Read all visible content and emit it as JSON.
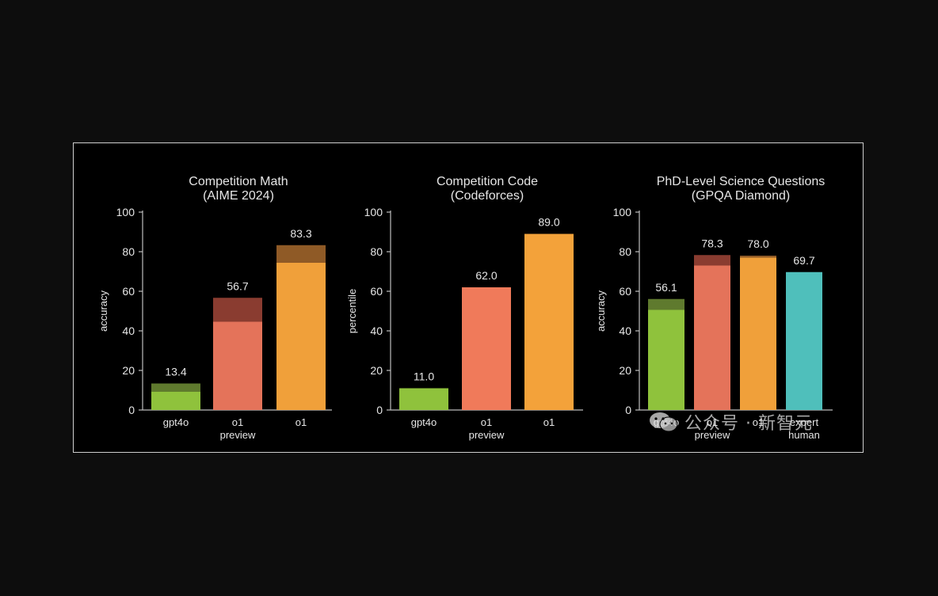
{
  "colors": {
    "background": "#000000",
    "axis": "#bdbdbd",
    "text": "#e6e6e6",
    "gpt4o": "#8fc23c",
    "gpt4o_top": "#5f7a2e",
    "o1_preview": "#e4735a",
    "o1_preview_top": "#8a3c30",
    "o1": "#f0a03a",
    "o1_top": "#8f5a26",
    "expert_human": "#4fbfbb"
  },
  "chart_data": [
    {
      "type": "bar",
      "title": "Competition Math",
      "subtitle": "(AIME 2024)",
      "ylabel": "accuracy",
      "ylim": [
        0,
        100
      ],
      "yticks": [
        "0",
        "20",
        "40",
        "60",
        "80",
        "100"
      ],
      "categories": [
        [
          "gpt4o"
        ],
        [
          "o1",
          "preview"
        ],
        [
          "o1"
        ]
      ],
      "bars": [
        {
          "value": 13.4,
          "label": "13.4",
          "base": 9.3,
          "color": "#8fc23c",
          "top_color": "#5f7a2e"
        },
        {
          "value": 56.7,
          "label": "56.7",
          "base": 44.6,
          "color": "#e4735a",
          "top_color": "#8a3c30"
        },
        {
          "value": 83.3,
          "label": "83.3",
          "base": 74.4,
          "color": "#f0a03a",
          "top_color": "#8f5a26"
        }
      ]
    },
    {
      "type": "bar",
      "title": "Competition Code",
      "subtitle": "(Codeforces)",
      "ylabel": "percentile",
      "ylim": [
        0,
        100
      ],
      "yticks": [
        "0",
        "20",
        "40",
        "60",
        "80",
        "100"
      ],
      "categories": [
        [
          "gpt4o"
        ],
        [
          "o1",
          "preview"
        ],
        [
          "o1"
        ]
      ],
      "bars": [
        {
          "value": 11.0,
          "label": "11.0",
          "base": 11.0,
          "color": "#8fc23c",
          "top_color": "#8fc23c"
        },
        {
          "value": 62.0,
          "label": "62.0",
          "base": 62.0,
          "color": "#f07a5a",
          "top_color": "#f07a5a"
        },
        {
          "value": 89.0,
          "label": "89.0",
          "base": 89.0,
          "color": "#f3a23a",
          "top_color": "#f3a23a"
        }
      ]
    },
    {
      "type": "bar",
      "title": "PhD-Level Science Questions",
      "subtitle": "(GPQA Diamond)",
      "ylabel": "accuracy",
      "ylim": [
        0,
        100
      ],
      "yticks": [
        "0",
        "20",
        "40",
        "60",
        "80",
        "100"
      ],
      "categories": [
        [
          "gpt4o"
        ],
        [
          "o1",
          "preview"
        ],
        [
          "o1"
        ],
        [
          "expert",
          "human"
        ]
      ],
      "bars": [
        {
          "value": 56.1,
          "label": "56.1",
          "base": 50.6,
          "color": "#8fc23c",
          "top_color": "#5f7a2e"
        },
        {
          "value": 78.3,
          "label": "78.3",
          "base": 73.0,
          "color": "#e4735a",
          "top_color": "#8a3c30"
        },
        {
          "value": 78.0,
          "label": "78.0",
          "base": 77.0,
          "color": "#f0a03a",
          "top_color": "#8f5a26"
        },
        {
          "value": 69.7,
          "label": "69.7",
          "base": 69.7,
          "color": "#4fbfbb",
          "top_color": "#4fbfbb"
        }
      ]
    }
  ],
  "watermark": {
    "text": "公众号 · 新智元",
    "icon": "wechat-icon"
  }
}
